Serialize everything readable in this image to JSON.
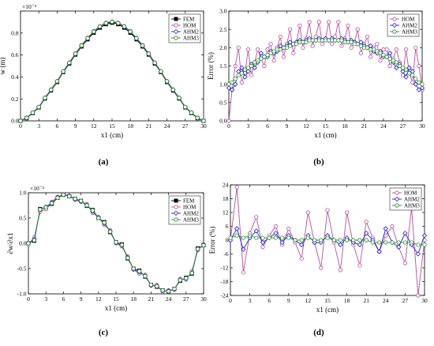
{
  "figure": {
    "panels": [
      {
        "id": "a",
        "label": "(a)"
      },
      {
        "id": "b",
        "label": "(b)"
      },
      {
        "id": "c",
        "label": "(c)"
      },
      {
        "id": "d",
        "label": "(d)"
      }
    ]
  },
  "chart_data": [
    {
      "panel": "(a)",
      "type": "line",
      "xlabel": "x1 (cm)",
      "ylabel": "w (m)",
      "yexponent": "×10⁻³",
      "xlim": [
        0,
        30
      ],
      "ylim": [
        0,
        1.0
      ],
      "xticks": [
        0,
        3,
        6,
        9,
        12,
        15,
        18,
        21,
        24,
        27,
        30
      ],
      "yticks": [
        0,
        0.2,
        0.4,
        0.6,
        0.8
      ],
      "ytick_labels": [
        "0.0",
        "0.2",
        "0.4",
        "0.6",
        "0.8"
      ],
      "grid": false,
      "legend_position": "top-right",
      "x": [
        0,
        1,
        2,
        3,
        4,
        5,
        6,
        7,
        8,
        9,
        10,
        11,
        12,
        13,
        14,
        15,
        16,
        17,
        18,
        19,
        20,
        21,
        22,
        23,
        24,
        25,
        26,
        27,
        28,
        29,
        30
      ],
      "series": [
        {
          "name": "FEM",
          "color": "#000000",
          "marker": "square-filled",
          "values": [
            0.0,
            0.024,
            0.071,
            0.122,
            0.203,
            0.276,
            0.353,
            0.444,
            0.521,
            0.603,
            0.677,
            0.742,
            0.802,
            0.848,
            0.88,
            0.893,
            0.88,
            0.848,
            0.802,
            0.742,
            0.677,
            0.603,
            0.521,
            0.444,
            0.353,
            0.276,
            0.203,
            0.122,
            0.071,
            0.024,
            0.0
          ]
        },
        {
          "name": "HOM",
          "color": "#b5509a",
          "marker": "circle-open",
          "values": [
            0.0,
            0.03,
            0.077,
            0.127,
            0.212,
            0.286,
            0.363,
            0.452,
            0.533,
            0.615,
            0.69,
            0.757,
            0.818,
            0.863,
            0.894,
            0.905,
            0.894,
            0.863,
            0.818,
            0.757,
            0.69,
            0.615,
            0.533,
            0.452,
            0.363,
            0.286,
            0.212,
            0.127,
            0.077,
            0.03,
            0.0
          ]
        },
        {
          "name": "AHM2",
          "color": "#1f1fd0",
          "marker": "diamond-open",
          "values": [
            0.0,
            0.026,
            0.074,
            0.125,
            0.208,
            0.282,
            0.359,
            0.449,
            0.527,
            0.609,
            0.684,
            0.75,
            0.811,
            0.857,
            0.888,
            0.9,
            0.888,
            0.857,
            0.811,
            0.75,
            0.684,
            0.609,
            0.527,
            0.449,
            0.359,
            0.282,
            0.208,
            0.125,
            0.074,
            0.026,
            0.0
          ]
        },
        {
          "name": "AHM3",
          "color": "#2a8a2a",
          "marker": "circle-open",
          "values": [
            0.0,
            0.027,
            0.075,
            0.126,
            0.209,
            0.283,
            0.36,
            0.45,
            0.529,
            0.611,
            0.686,
            0.752,
            0.813,
            0.859,
            0.89,
            0.902,
            0.89,
            0.859,
            0.813,
            0.752,
            0.686,
            0.611,
            0.529,
            0.45,
            0.36,
            0.283,
            0.209,
            0.126,
            0.075,
            0.027,
            0.0
          ]
        }
      ]
    },
    {
      "panel": "(b)",
      "type": "line",
      "xlabel": "x1 (cm)",
      "ylabel": "Error (%)",
      "xlim": [
        0,
        30
      ],
      "ylim": [
        0,
        3.0
      ],
      "xticks": [
        0,
        3,
        6,
        9,
        12,
        15,
        18,
        21,
        24,
        27,
        30
      ],
      "yticks": [
        0,
        0.5,
        1.0,
        1.5,
        2.0,
        2.5,
        3.0
      ],
      "ytick_labels": [
        "0.0",
        "0.5",
        "1.0",
        "1.5",
        "2.0",
        "2.5",
        "3.0"
      ],
      "grid": false,
      "legend_position": "top-right",
      "x": [
        0,
        0.5,
        1,
        1.5,
        2,
        2.5,
        3,
        3.5,
        4,
        4.5,
        5,
        5.5,
        6,
        6.5,
        7,
        7.5,
        8,
        8.5,
        9,
        9.5,
        10,
        10.5,
        11,
        11.5,
        12,
        12.5,
        13,
        13.5,
        14,
        14.5,
        15,
        15.5,
        16,
        16.5,
        17,
        17.5,
        18,
        18.5,
        19,
        19.5,
        20,
        20.5,
        21,
        21.5,
        22,
        22.5,
        23,
        23.5,
        24,
        24.5,
        25,
        25.5,
        26,
        26.5,
        27,
        27.5,
        28,
        28.5,
        29,
        29.5,
        30
      ],
      "series": [
        {
          "name": "HOM",
          "color": "#b5509a",
          "marker": "circle-open",
          "values": [
            0.0,
            0.85,
            1.5,
            2.0,
            1.05,
            1.3,
            1.95,
            1.25,
            1.6,
            1.95,
            1.7,
            1.5,
            1.95,
            2.1,
            1.65,
            2.0,
            2.3,
            1.75,
            2.1,
            2.5,
            1.85,
            2.15,
            2.6,
            2.0,
            2.25,
            2.7,
            2.05,
            2.3,
            2.7,
            2.1,
            2.25,
            2.7,
            2.1,
            2.3,
            2.7,
            2.05,
            2.25,
            2.6,
            2.0,
            2.15,
            2.5,
            1.85,
            2.1,
            2.3,
            1.75,
            2.0,
            2.1,
            1.65,
            1.95,
            1.95,
            1.5,
            1.7,
            1.95,
            1.6,
            1.25,
            1.95,
            1.3,
            1.05,
            2.0,
            1.5,
            0.85
          ]
        },
        {
          "name": "AHM2",
          "color": "#1f1fd0",
          "marker": "diamond-open",
          "values": [
            0.9,
            0.85,
            1.0,
            1.35,
            1.45,
            1.2,
            1.35,
            1.55,
            1.45,
            1.6,
            1.85,
            1.75,
            1.75,
            1.9,
            1.85,
            1.9,
            2.05,
            2.0,
            2.05,
            2.15,
            2.1,
            2.15,
            2.2,
            2.15,
            2.2,
            2.25,
            2.2,
            2.2,
            2.25,
            2.2,
            2.25,
            2.2,
            2.25,
            2.2,
            2.2,
            2.25,
            2.2,
            2.15,
            2.2,
            2.15,
            2.1,
            2.15,
            2.05,
            2.0,
            2.05,
            1.9,
            1.85,
            1.9,
            1.75,
            1.75,
            1.85,
            1.6,
            1.45,
            1.55,
            1.35,
            1.2,
            1.45,
            1.35,
            1.0,
            0.85,
            0.9
          ]
        },
        {
          "name": "AHM3",
          "color": "#2a8a2a",
          "marker": "circle-open",
          "values": [
            1.0,
            1.05,
            1.15,
            1.25,
            1.3,
            1.4,
            1.45,
            1.5,
            1.6,
            1.65,
            1.7,
            1.75,
            1.8,
            1.85,
            1.9,
            1.95,
            1.95,
            2.0,
            2.0,
            2.05,
            2.1,
            2.1,
            2.15,
            2.15,
            2.15,
            2.2,
            2.2,
            2.2,
            2.2,
            2.2,
            2.2,
            2.2,
            2.2,
            2.2,
            2.2,
            2.2,
            2.15,
            2.15,
            2.15,
            2.1,
            2.1,
            2.05,
            2.0,
            2.0,
            1.95,
            1.95,
            1.9,
            1.85,
            1.8,
            1.75,
            1.7,
            1.65,
            1.6,
            1.5,
            1.45,
            1.4,
            1.3,
            1.25,
            1.15,
            1.05,
            1.0
          ]
        }
      ]
    },
    {
      "panel": "(c)",
      "type": "line",
      "xlabel": "x1 (cm)",
      "ylabel": "∂w/∂x1",
      "yexponent": "×10⁻²",
      "xlim": [
        0,
        30
      ],
      "ylim": [
        -1.0,
        1.0
      ],
      "xticks": [
        0,
        3,
        6,
        9,
        12,
        15,
        18,
        21,
        24,
        27,
        30
      ],
      "yticks": [
        -1.0,
        -0.5,
        0.0,
        0.5,
        1.0
      ],
      "ytick_labels": [
        "-1.0",
        "-0.5",
        "0.0",
        "0.5",
        "1.0"
      ],
      "grid": false,
      "legend_position": "top-right",
      "x": [
        0,
        1,
        2,
        3,
        4,
        5,
        6,
        7,
        8,
        9,
        10,
        11,
        12,
        13,
        14,
        15,
        16,
        17,
        18,
        19,
        20,
        21,
        22,
        23,
        24,
        25,
        26,
        27,
        28,
        29,
        30
      ],
      "series": [
        {
          "name": "FEM",
          "color": "#000000",
          "marker": "square-filled",
          "values": [
            0.0,
            0.05,
            0.68,
            0.7,
            0.78,
            0.9,
            0.96,
            0.93,
            0.88,
            0.84,
            0.74,
            0.66,
            0.5,
            0.42,
            0.22,
            0.02,
            -0.02,
            -0.3,
            -0.5,
            -0.54,
            -0.66,
            -0.82,
            -0.86,
            -0.93,
            -0.95,
            -0.9,
            -0.74,
            -0.68,
            -0.6,
            -0.1,
            -0.04
          ]
        },
        {
          "name": "HOM",
          "color": "#b5509a",
          "marker": "circle-open",
          "values": [
            -0.03,
            0.12,
            0.62,
            0.68,
            0.82,
            0.92,
            0.97,
            0.94,
            0.86,
            0.82,
            0.78,
            0.6,
            0.52,
            0.36,
            0.26,
            0.0,
            -0.06,
            -0.26,
            -0.52,
            -0.6,
            -0.62,
            -0.84,
            -0.82,
            -0.96,
            -0.93,
            -0.92,
            -0.7,
            -0.72,
            -0.55,
            -0.14,
            -0.02
          ]
        },
        {
          "name": "AHM2",
          "color": "#1f1fd0",
          "marker": "diamond-open",
          "values": [
            0.0,
            0.08,
            0.66,
            0.72,
            0.8,
            0.91,
            0.96,
            0.94,
            0.87,
            0.83,
            0.76,
            0.63,
            0.51,
            0.39,
            0.24,
            0.01,
            -0.04,
            -0.28,
            -0.51,
            -0.57,
            -0.64,
            -0.83,
            -0.84,
            -0.94,
            -0.94,
            -0.91,
            -0.72,
            -0.7,
            -0.58,
            -0.12,
            -0.03
          ]
        },
        {
          "name": "AHM3",
          "color": "#2a8a2a",
          "marker": "circle-open",
          "values": [
            0.0,
            0.06,
            0.67,
            0.71,
            0.79,
            0.9,
            0.96,
            0.93,
            0.88,
            0.84,
            0.75,
            0.65,
            0.5,
            0.41,
            0.23,
            0.02,
            -0.03,
            -0.29,
            -0.5,
            -0.55,
            -0.65,
            -0.82,
            -0.85,
            -0.93,
            -0.95,
            -0.9,
            -0.73,
            -0.69,
            -0.59,
            -0.11,
            -0.04
          ]
        }
      ]
    },
    {
      "panel": "(d)",
      "type": "line",
      "xlabel": "x1 (cm)",
      "ylabel": "Error (%)",
      "xlim": [
        0,
        30
      ],
      "ylim": [
        -24,
        24
      ],
      "xticks": [
        0,
        3,
        6,
        9,
        12,
        15,
        18,
        21,
        24,
        27,
        30
      ],
      "yticks": [
        -24,
        -18,
        -12,
        -6,
        0,
        6,
        12,
        18,
        24
      ],
      "ytick_labels": [
        "-24",
        "-18",
        "-12",
        "-6",
        "0",
        "6",
        "12",
        "18",
        "24"
      ],
      "grid": false,
      "legend_position": "top-right",
      "x": [
        0,
        1,
        2,
        3,
        4,
        5,
        6,
        7,
        8,
        9,
        10,
        11,
        12,
        13,
        14,
        15,
        16,
        17,
        18,
        19,
        20,
        21,
        22,
        23,
        24,
        25,
        26,
        27,
        28,
        29,
        30
      ],
      "series": [
        {
          "name": "HOM",
          "color": "#b5509a",
          "marker": "circle-open",
          "values": [
            0,
            23,
            -14,
            3,
            10,
            -3,
            2,
            6,
            -2,
            5,
            -1,
            -8,
            12,
            -1,
            -12,
            13,
            -1,
            -13,
            12,
            -2,
            -11,
            8,
            1,
            -5,
            2,
            6,
            -3,
            -10,
            14,
            -24,
            0
          ]
        },
        {
          "name": "AHM2",
          "color": "#1f1fd0",
          "marker": "diamond-open",
          "values": [
            0,
            5,
            -4,
            1,
            4,
            -1,
            1,
            3,
            -1,
            2,
            0,
            -2,
            2,
            -1,
            -1,
            2,
            0,
            -2,
            1,
            -1,
            -2,
            3,
            0,
            -5,
            5,
            -1,
            -3,
            3,
            -2,
            -6,
            2
          ]
        },
        {
          "name": "AHM3",
          "color": "#2a8a2a",
          "marker": "circle-open",
          "values": [
            1,
            2,
            1,
            2,
            1,
            1,
            1,
            1,
            1,
            1,
            0,
            0,
            1,
            0,
            0,
            1,
            0,
            0,
            0,
            0,
            0,
            0,
            -1,
            -1,
            -1,
            -1,
            -1,
            -1,
            -1,
            -2,
            -2
          ]
        }
      ]
    }
  ]
}
